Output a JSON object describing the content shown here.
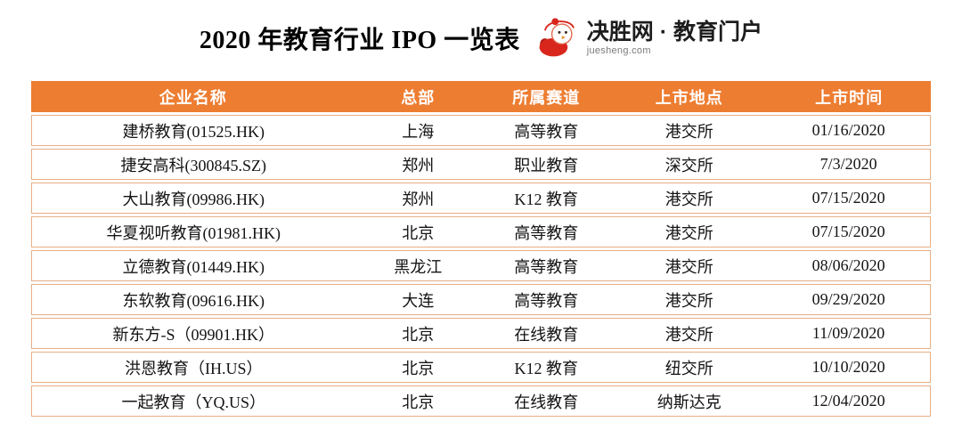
{
  "logo": {
    "brand": "决胜网",
    "separator": "·",
    "suffix": "教育门户",
    "domain": "juesheng.com",
    "mascot": "juesheng-mascot-icon",
    "brand_color": "#D8261D"
  },
  "colors": {
    "header_bg": "#ED7D31",
    "header_text": "#FFFFFF",
    "row_border": "#E8AE85",
    "body_text": "#141414",
    "background": "#FFFFFF"
  },
  "chart_data": {
    "type": "table",
    "title": "2020 年教育行业 IPO 一览表",
    "columns": [
      "企业名称",
      "总部",
      "所属赛道",
      "上市地点",
      "上市时间"
    ],
    "column_widths": [
      "36%",
      "14%",
      "14.5%",
      "17.3%",
      "18.2%"
    ],
    "rows": [
      [
        "建桥教育(01525.HK)",
        "上海",
        "高等教育",
        "港交所",
        "01/16/2020"
      ],
      [
        "捷安高科(300845.SZ)",
        "郑州",
        "职业教育",
        "深交所",
        "7/3/2020"
      ],
      [
        "大山教育(09986.HK)",
        "郑州",
        "K12 教育",
        "港交所",
        "07/15/2020"
      ],
      [
        "华夏视听教育(01981.HK)",
        "北京",
        "高等教育",
        "港交所",
        "07/15/2020"
      ],
      [
        "立德教育(01449.HK)",
        "黑龙江",
        "高等教育",
        "港交所",
        "08/06/2020"
      ],
      [
        "东软教育(09616.HK)",
        "大连",
        "高等教育",
        "港交所",
        "09/29/2020"
      ],
      [
        "新东方-S（09901.HK）",
        "北京",
        "在线教育",
        "港交所",
        "11/09/2020"
      ],
      [
        "洪恩教育（IH.US）",
        "北京",
        "K12 教育",
        "纽交所",
        "10/10/2020"
      ],
      [
        "一起教育（YQ.US）",
        "北京",
        "在线教育",
        "纳斯达克",
        "12/04/2020"
      ]
    ]
  }
}
